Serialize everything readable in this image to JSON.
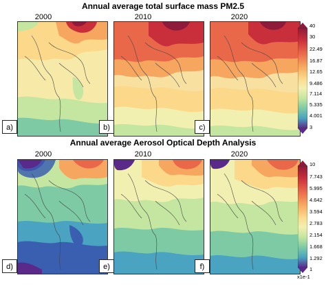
{
  "top": {
    "title": "Annual average total surface mass PM2.5",
    "years": [
      "2000",
      "2010",
      "2020"
    ],
    "panels": [
      "a)",
      "b)",
      "c)"
    ],
    "colorbar_ticks": [
      "40",
      "30",
      "22.49",
      "16.87",
      "12.65",
      "9.486",
      "7.114",
      "5.335",
      "4.001",
      "3"
    ]
  },
  "bottom": {
    "title": "Annual average Aerosol Optical Depth Analysis",
    "years": [
      "2000",
      "2010",
      "2020"
    ],
    "panels": [
      "d)",
      "e)",
      "f)"
    ],
    "colorbar_ticks": [
      "10",
      "7.743",
      "5.995",
      "4.642",
      "3.594",
      "2.783",
      "2.154",
      "1.668",
      "1.292",
      "1"
    ],
    "colorbar_unit": "x1e-1"
  },
  "colors": {
    "palette": [
      "#5a2a8a",
      "#3b5fb0",
      "#4aa3c0",
      "#7dcaa5",
      "#c4e6a0",
      "#f2f0b0",
      "#fbd88a",
      "#f7a660",
      "#e9684a",
      "#c92f3b",
      "#8e1b3a"
    ]
  }
}
